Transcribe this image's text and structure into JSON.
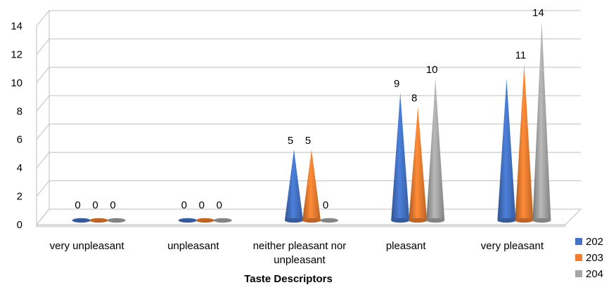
{
  "chart_data": {
    "type": "bar",
    "style": "3d-cone",
    "categories": [
      "very unpleasant",
      "unpleasant",
      "neither pleasant nor unpleasant",
      "pleasant",
      "very pleasant"
    ],
    "category_lines": [
      [
        "very unpleasant"
      ],
      [
        "unpleasant"
      ],
      [
        "neither pleasant nor",
        "unpleasant"
      ],
      [
        "pleasant"
      ],
      [
        "very pleasant"
      ]
    ],
    "series": [
      {
        "name": "202",
        "color": "#4472C4",
        "values": [
          0,
          0,
          5,
          9,
          10
        ]
      },
      {
        "name": "203",
        "color": "#ED7D31",
        "values": [
          0,
          0,
          5,
          8,
          11
        ]
      },
      {
        "name": "204",
        "color": "#A5A5A5",
        "values": [
          0,
          0,
          0,
          10,
          14
        ]
      }
    ],
    "data_labels": [
      [
        "0",
        "0",
        "5",
        "9",
        ""
      ],
      [
        "0",
        "0",
        "5",
        "8",
        "11"
      ],
      [
        "0",
        "0",
        "0",
        "10",
        "14"
      ]
    ],
    "xlabel": "Taste Descriptors",
    "ylabel": "",
    "ylim": [
      0,
      14
    ],
    "yticks": [
      0,
      2,
      4,
      6,
      8,
      10,
      12,
      14
    ],
    "grid": true,
    "legend": "right"
  }
}
